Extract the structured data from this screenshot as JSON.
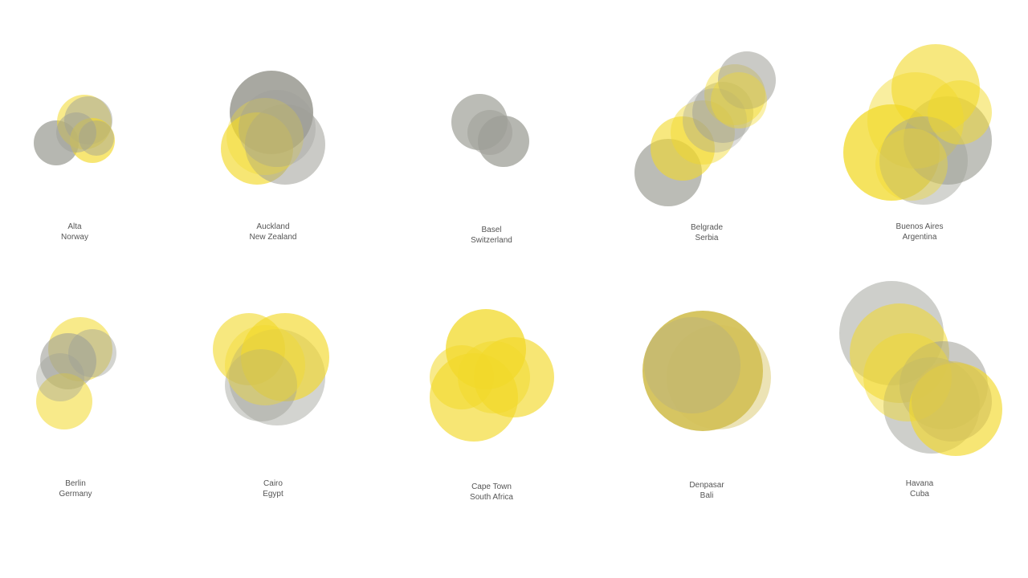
{
  "colors": {
    "yellow": "#f2d92a",
    "grey": "#9e9f97",
    "mustard": "#d4c25a",
    "background": "#ffffff",
    "label": "#555555"
  },
  "cities": [
    {
      "id": "alta",
      "city": "Alta",
      "country": "Norway"
    },
    {
      "id": "auckland",
      "city": "Auckland",
      "country": "New Zealand"
    },
    {
      "id": "basel",
      "city": "Basel",
      "country": "Switzerland"
    },
    {
      "id": "belgrade",
      "city": "Belgrade",
      "country": "Serbia"
    },
    {
      "id": "buenos-aires",
      "city": "Buenos Aires",
      "country": "Argentina"
    },
    {
      "id": "berlin",
      "city": "Berlin",
      "country": "Germany"
    },
    {
      "id": "cairo",
      "city": "Cairo",
      "country": "Egypt"
    },
    {
      "id": "cape-town",
      "city": "Cape Town",
      "country": "South Africa"
    },
    {
      "id": "denpasar",
      "city": "Denpasar",
      "country": "Bali"
    },
    {
      "id": "havana",
      "city": "Havana",
      "country": "Cuba"
    }
  ]
}
